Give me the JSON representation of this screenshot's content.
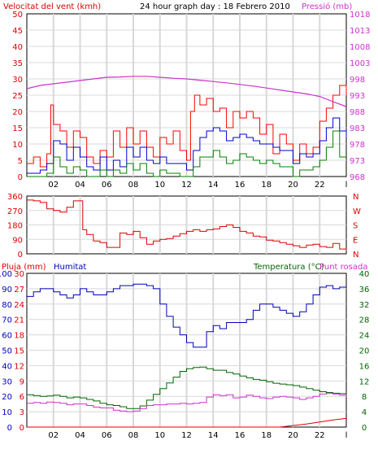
{
  "chart_data": [
    {
      "type": "line",
      "title": "24 hour graph day : 18 Febrero 2010",
      "left_label": "Velocitat del vent (kmh)",
      "right_label": "Pressió (mb)",
      "yticks_left": [
        "0",
        "5",
        "10",
        "15",
        "20",
        "25",
        "30",
        "35",
        "40",
        "45",
        "50"
      ],
      "yticks_right": [
        "968",
        "973",
        "978",
        "983",
        "988",
        "993",
        "998",
        "1003",
        "1008",
        "1013",
        "1018"
      ],
      "ylim_left": [
        0,
        50
      ],
      "ylim_right": [
        968,
        1018
      ],
      "xticks": [
        "02",
        "04",
        "06",
        "08",
        "10",
        "12",
        "14",
        "16",
        "18",
        "20",
        "22"
      ],
      "x_end_label": "l",
      "colors": {
        "gust": "#ff0000",
        "average": "#0000cc",
        "min": "#008000",
        "pressure": "#cc33cc"
      },
      "series": [
        {
          "id": "gust",
          "x": [
            0,
            0.5,
            1,
            1.5,
            1.8,
            2,
            2.5,
            3,
            3.5,
            4,
            4.5,
            5,
            5.5,
            6,
            6.5,
            7,
            7.5,
            8,
            8.5,
            9,
            9.5,
            10,
            10.5,
            11,
            11.5,
            12,
            12.3,
            12.6,
            13,
            13.5,
            14,
            14.5,
            15,
            15.5,
            16,
            16.5,
            17,
            17.5,
            18,
            18.5,
            19,
            19.5,
            20,
            20.5,
            21,
            21.5,
            22,
            22.5,
            23,
            23.5,
            24
          ],
          "values": [
            4,
            6,
            3,
            7,
            22,
            16,
            14,
            9,
            14,
            12,
            6,
            4,
            8,
            6,
            14,
            9,
            15,
            10,
            14,
            9,
            6,
            12,
            10,
            14,
            8,
            5,
            20,
            25,
            22,
            24,
            20,
            21,
            15,
            20,
            18,
            20,
            18,
            13,
            16,
            7,
            13,
            10,
            5,
            10,
            7,
            9,
            17,
            21,
            25,
            28,
            25
          ]
        },
        {
          "id": "average",
          "x": [
            0,
            1,
            1.5,
            2,
            2.5,
            3,
            3.5,
            4,
            4.5,
            5,
            5.5,
            6,
            6.5,
            7,
            7.5,
            8,
            8.5,
            9,
            9.5,
            10,
            10.5,
            11,
            11.5,
            12,
            12.5,
            13,
            13.5,
            14,
            14.5,
            15,
            15.5,
            16,
            16.5,
            17,
            17.5,
            18,
            18.5,
            19,
            19.5,
            20,
            20.5,
            21,
            21.5,
            22,
            22.5,
            23,
            23.5,
            24
          ],
          "values": [
            1,
            2,
            4,
            11,
            10,
            5,
            9,
            6,
            3,
            2,
            6,
            2,
            5,
            3,
            9,
            6,
            9,
            5,
            4,
            6,
            4,
            4,
            4,
            2,
            8,
            12,
            14,
            15,
            14,
            11,
            12,
            13,
            12,
            11,
            10,
            10,
            9,
            8,
            8,
            4,
            7,
            6,
            7,
            11,
            15,
            18,
            14,
            12
          ]
        },
        {
          "id": "min",
          "x": [
            0,
            1,
            1.5,
            2,
            2.5,
            3,
            3.5,
            4,
            4.5,
            5,
            5.5,
            6,
            6.5,
            7,
            7.5,
            8,
            8.5,
            9,
            9.5,
            10,
            10.5,
            11,
            11.5,
            12,
            12.5,
            13,
            13.5,
            14,
            14.5,
            15,
            15.5,
            16,
            16.5,
            17,
            17.5,
            18,
            18.5,
            19,
            19.5,
            20,
            20.5,
            21,
            21.5,
            22,
            22.5,
            23,
            23.5,
            24
          ],
          "values": [
            0,
            0,
            1,
            6,
            3,
            1,
            3,
            2,
            0,
            0,
            2,
            0,
            2,
            1,
            4,
            2,
            4,
            1,
            0,
            2,
            1,
            1,
            0,
            0,
            3,
            6,
            6,
            8,
            6,
            4,
            5,
            7,
            6,
            5,
            4,
            5,
            4,
            3,
            3,
            0,
            2,
            2,
            3,
            5,
            9,
            14,
            6,
            6
          ]
        },
        {
          "id": "pressure",
          "x": [
            0,
            1,
            2,
            3,
            4,
            5,
            6,
            7,
            8,
            9,
            10,
            11,
            12,
            13,
            14,
            15,
            16,
            17,
            18,
            19,
            20,
            21,
            22,
            23,
            24
          ],
          "values": [
            995,
            996,
            996.5,
            997,
            997.5,
            998,
            998.5,
            998.6,
            998.8,
            998.8,
            998.5,
            998.2,
            998,
            997.6,
            997.2,
            996.8,
            996.3,
            995.8,
            995.2,
            994.6,
            994,
            993.4,
            992.6,
            991,
            989.5
          ]
        }
      ]
    },
    {
      "type": "line",
      "name": "wind-direction",
      "yticks_left": [
        "360",
        "270",
        "180",
        "90",
        "0"
      ],
      "yticks_right": [
        "N",
        "W",
        "S",
        "E",
        "N"
      ],
      "ylim": [
        0,
        360
      ],
      "color": "#dd0000",
      "x": [
        0,
        0.5,
        1,
        1.5,
        2,
        2.5,
        3,
        3.5,
        4,
        4.2,
        4.5,
        5,
        5.5,
        6,
        6.5,
        7,
        7.5,
        8,
        8.5,
        9,
        9.5,
        10,
        10.5,
        11,
        11.5,
        12,
        12.5,
        13,
        13.5,
        14,
        14.5,
        15,
        15.5,
        16,
        16.5,
        17,
        17.5,
        18,
        18.5,
        19,
        19.5,
        20,
        20.5,
        21,
        21.5,
        22,
        22.5,
        23,
        23.5,
        24
      ],
      "values": [
        335,
        330,
        320,
        280,
        270,
        260,
        290,
        330,
        330,
        150,
        120,
        80,
        70,
        40,
        40,
        130,
        120,
        140,
        100,
        60,
        80,
        90,
        95,
        110,
        125,
        140,
        150,
        140,
        150,
        155,
        170,
        180,
        165,
        140,
        130,
        110,
        105,
        85,
        80,
        70,
        60,
        50,
        40,
        55,
        60,
        45,
        40,
        65,
        30,
        20
      ]
    },
    {
      "type": "line",
      "left_label": "Pluja (mm)",
      "mid_label": "Humitat",
      "right_label": "Temperatura (°C)",
      "right_label_2": "Punt rosada",
      "yticks_hum": [
        "0",
        "10",
        "20",
        "30",
        "40",
        "50",
        "60",
        "70",
        "80",
        "90",
        "100"
      ],
      "yticks_rain": [
        "0",
        "3",
        "6",
        "9",
        "12",
        "15",
        "18",
        "21",
        "24",
        "27",
        "30"
      ],
      "yticks_temp": [
        "0",
        "4",
        "8",
        "12",
        "16",
        "20",
        "24",
        "28",
        "32",
        "36",
        "40"
      ],
      "ylim_humidity": [
        0,
        100
      ],
      "ylim_rain": [
        0,
        30
      ],
      "ylim_temp": [
        0,
        40
      ],
      "xticks": [
        "02",
        "04",
        "06",
        "08",
        "10",
        "12",
        "14",
        "16",
        "18",
        "20",
        "22"
      ],
      "x_end_label": "l",
      "colors": {
        "humidity": "#0000bb",
        "temperature": "#006600",
        "dewpoint": "#cc33cc",
        "rain": "#dd0000"
      },
      "series": [
        {
          "id": "humidity",
          "x": [
            0,
            0.5,
            1,
            1.5,
            2,
            2.5,
            3,
            3.5,
            4,
            4.5,
            5,
            5.5,
            6,
            6.5,
            7,
            7.5,
            8,
            8.5,
            9,
            9.5,
            10,
            10.5,
            11,
            11.5,
            12,
            12.5,
            13,
            13.5,
            14,
            14.5,
            15,
            15.5,
            16,
            16.5,
            17,
            17.5,
            18,
            18.5,
            19,
            19.5,
            20,
            20.5,
            21,
            21.5,
            22,
            22.5,
            23,
            23.5,
            24
          ],
          "values": [
            85,
            88,
            90,
            90,
            88,
            86,
            84,
            86,
            90,
            88,
            86,
            86,
            88,
            90,
            92,
            92,
            93,
            93,
            92,
            90,
            80,
            72,
            65,
            60,
            55,
            52,
            52,
            62,
            66,
            64,
            68,
            68,
            68,
            70,
            76,
            80,
            80,
            78,
            76,
            74,
            72,
            75,
            80,
            86,
            91,
            92,
            90,
            91,
            91
          ]
        },
        {
          "id": "temperature",
          "x": [
            0,
            0.5,
            1,
            1.5,
            2,
            2.5,
            3,
            3.5,
            4,
            4.5,
            5,
            5.5,
            6,
            6.5,
            7,
            7.5,
            8,
            8.5,
            9,
            9.5,
            10,
            10.5,
            11,
            11.5,
            12,
            12.5,
            13,
            13.5,
            14,
            14.5,
            15,
            15.5,
            16,
            16.5,
            17,
            17.5,
            18,
            18.5,
            19,
            19.5,
            20,
            20.5,
            21,
            21.5,
            22,
            22.5,
            23,
            23.5,
            24
          ],
          "values": [
            8.4,
            8.2,
            8,
            8.1,
            8.3,
            8,
            7.6,
            7.8,
            7.6,
            7.2,
            6.8,
            6.2,
            5.8,
            5.6,
            5.3,
            4.8,
            4.8,
            5.5,
            7,
            8.5,
            10,
            11.5,
            13,
            14.5,
            15.2,
            15.5,
            15.6,
            15.2,
            14.8,
            14.8,
            14.2,
            13.8,
            13.3,
            12.8,
            12.4,
            12.2,
            11.8,
            11.4,
            11.2,
            11,
            10.8,
            10.4,
            10,
            9.6,
            9.2,
            9,
            8.8,
            8.7,
            8.6
          ]
        },
        {
          "id": "dewpoint",
          "x": [
            0,
            0.5,
            1,
            1.5,
            2,
            2.5,
            3,
            3.5,
            4,
            4.5,
            5,
            5.5,
            6,
            6.5,
            7,
            7.5,
            8,
            8.5,
            9,
            9.5,
            10,
            10.5,
            11,
            11.5,
            12,
            12.5,
            13,
            13.5,
            14,
            14.5,
            15,
            15.5,
            16,
            16.5,
            17,
            17.5,
            18,
            18.5,
            19,
            19.5,
            20,
            20.5,
            21,
            21.5,
            22,
            22.5,
            23,
            23.5,
            24
          ],
          "values": [
            6.2,
            6.4,
            6.2,
            6.5,
            6.4,
            6.2,
            5.8,
            6,
            6,
            5.6,
            5.2,
            5,
            5,
            4.4,
            4.2,
            4,
            4.2,
            4.8,
            5.6,
            5.8,
            5.8,
            6,
            6,
            6.2,
            6,
            6.2,
            6.4,
            7.8,
            8.4,
            8.2,
            8.4,
            7.6,
            7.8,
            8.3,
            8,
            7.6,
            7.4,
            7.8,
            8,
            7.8,
            7.6,
            7.2,
            7.6,
            8,
            8.6,
            8.8,
            8.6,
            8.3,
            8.2
          ]
        },
        {
          "id": "rain",
          "x": [
            0,
            19,
            20,
            21,
            22,
            23,
            24
          ],
          "values": [
            0,
            0,
            0.3,
            0.6,
            1,
            1.4,
            1.7
          ]
        }
      ]
    }
  ]
}
